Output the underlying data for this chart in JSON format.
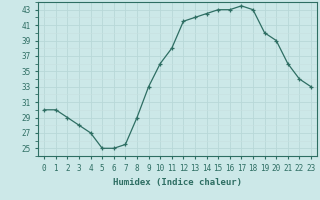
{
  "x": [
    0,
    1,
    2,
    3,
    4,
    5,
    6,
    7,
    8,
    9,
    10,
    11,
    12,
    13,
    14,
    15,
    16,
    17,
    18,
    19,
    20,
    21,
    22,
    23
  ],
  "y": [
    30,
    30,
    29,
    28,
    27,
    25,
    25,
    25.5,
    29,
    33,
    36,
    38,
    41.5,
    42,
    42.5,
    43,
    43,
    43.5,
    43,
    40,
    39,
    36,
    34,
    33
  ],
  "line_color": "#2e6e63",
  "marker": "+",
  "bg_color": "#cce8e8",
  "grid_major_color": "#b8d8d8",
  "grid_minor_color": "#c8e0e0",
  "axis_color": "#2e6e63",
  "xlabel": "Humidex (Indice chaleur)",
  "xlabel_fontsize": 6.5,
  "tick_fontsize": 5.5,
  "xlim": [
    -0.5,
    23.5
  ],
  "ylim": [
    24,
    44
  ],
  "yticks": [
    25,
    27,
    29,
    31,
    33,
    35,
    37,
    39,
    41,
    43
  ],
  "xticks": [
    0,
    1,
    2,
    3,
    4,
    5,
    6,
    7,
    8,
    9,
    10,
    11,
    12,
    13,
    14,
    15,
    16,
    17,
    18,
    19,
    20,
    21,
    22,
    23
  ]
}
